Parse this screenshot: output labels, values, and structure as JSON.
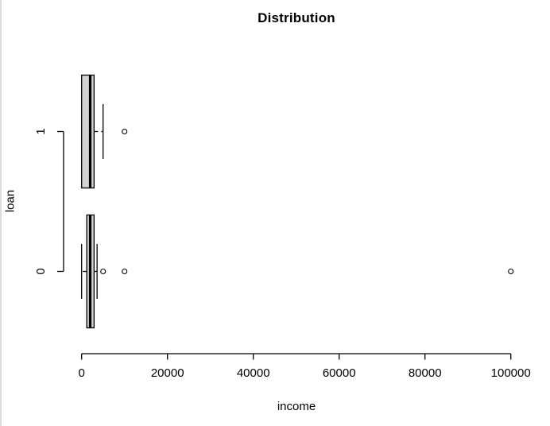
{
  "window": {
    "background": "#ffffff",
    "left_border_color": "#d9dae3"
  },
  "colors": {
    "box_fill": "#d3d3d3",
    "line": "#000000",
    "text": "#000000"
  },
  "chart_data": {
    "type": "boxplot",
    "orientation": "horizontal",
    "title": "Distribution",
    "xlabel": "income",
    "ylabel": "loan",
    "xlim": [
      0,
      100000
    ],
    "x_ticks": [
      0,
      20000,
      40000,
      60000,
      80000,
      100000
    ],
    "grid": false,
    "legend": null,
    "groups": [
      {
        "label": "0",
        "q1": 1200,
        "median": 2000,
        "q3": 2900,
        "whisker_low": 0,
        "whisker_high": 3600,
        "outliers": [
          5000,
          10000,
          100000
        ]
      },
      {
        "label": "1",
        "q1": 0,
        "median": 2000,
        "q3": 2900,
        "whisker_low": 0,
        "whisker_high": 5000,
        "outliers": [
          10000
        ]
      }
    ]
  }
}
